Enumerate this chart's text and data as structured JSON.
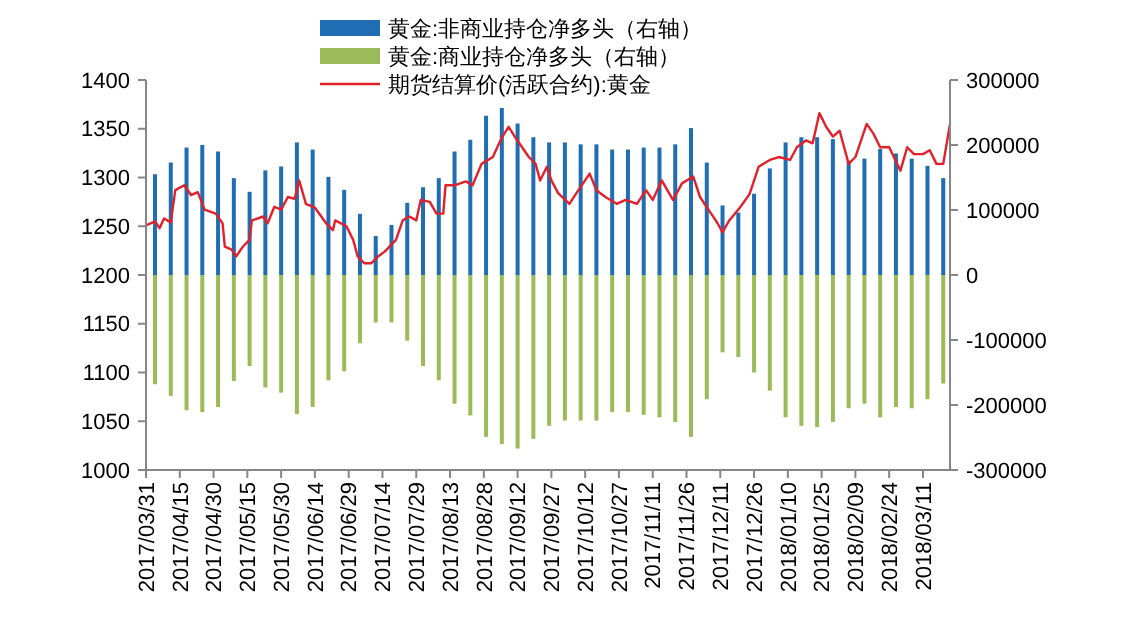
{
  "chart_data": {
    "type": "bar",
    "legend": "top",
    "grid": false,
    "xlim": [
      "2017-03-31",
      "2018-03-23"
    ],
    "xticks": [
      {
        "value": "2017-03-31",
        "label": "2017/03/31"
      },
      {
        "value": "2017-04-15",
        "label": "2017/04/15"
      },
      {
        "value": "2017-04-30",
        "label": "2017/04/30"
      },
      {
        "value": "2017-05-15",
        "label": "2017/05/15"
      },
      {
        "value": "2017-05-30",
        "label": "2017/05/30"
      },
      {
        "value": "2017-06-14",
        "label": "2017/06/14"
      },
      {
        "value": "2017-06-29",
        "label": "2017/06/29"
      },
      {
        "value": "2017-07-14",
        "label": "2017/07/14"
      },
      {
        "value": "2017-07-29",
        "label": "2017/07/29"
      },
      {
        "value": "2017-08-13",
        "label": "2017/08/13"
      },
      {
        "value": "2017-08-28",
        "label": "2017/08/28"
      },
      {
        "value": "2017-09-12",
        "label": "2017/09/12"
      },
      {
        "value": "2017-09-27",
        "label": "2017/09/27"
      },
      {
        "value": "2017-10-12",
        "label": "2017/10/12"
      },
      {
        "value": "2017-10-27",
        "label": "2017/10/27"
      },
      {
        "value": "2017-11-11",
        "label": "2017/11/11"
      },
      {
        "value": "2017-11-26",
        "label": "2017/11/26"
      },
      {
        "value": "2017-12-11",
        "label": "2017/12/11"
      },
      {
        "value": "2017-12-26",
        "label": "2017/12/26"
      },
      {
        "value": "2018-01-10",
        "label": "2018/01/10"
      },
      {
        "value": "2018-01-25",
        "label": "2018/01/25"
      },
      {
        "value": "2018-02-09",
        "label": "2018/02/09"
      },
      {
        "value": "2018-02-24",
        "label": "2018/02/24"
      },
      {
        "value": "2018-03-11",
        "label": "2018/03/11"
      }
    ],
    "ylim": [
      1000,
      1400
    ],
    "yticks": [
      1000,
      1050,
      1100,
      1150,
      1200,
      1250,
      1300,
      1350,
      1400
    ],
    "y2lim": [
      -300000,
      300000
    ],
    "y2ticks": [
      -300000,
      -200000,
      -100000,
      0,
      100000,
      200000,
      300000
    ],
    "x": [
      "2017-04-04",
      "2017-04-11",
      "2017-04-18",
      "2017-04-25",
      "2017-05-02",
      "2017-05-09",
      "2017-05-16",
      "2017-05-23",
      "2017-05-30",
      "2017-06-06",
      "2017-06-13",
      "2017-06-20",
      "2017-06-27",
      "2017-07-04",
      "2017-07-11",
      "2017-07-18",
      "2017-07-25",
      "2017-08-01",
      "2017-08-08",
      "2017-08-15",
      "2017-08-22",
      "2017-08-29",
      "2017-09-05",
      "2017-09-12",
      "2017-09-19",
      "2017-09-26",
      "2017-10-03",
      "2017-10-10",
      "2017-10-17",
      "2017-10-24",
      "2017-10-31",
      "2017-11-07",
      "2017-11-14",
      "2017-11-21",
      "2017-11-28",
      "2017-12-05",
      "2017-12-12",
      "2017-12-19",
      "2017-12-26",
      "2018-01-02",
      "2018-01-09",
      "2018-01-16",
      "2018-01-23",
      "2018-01-30",
      "2018-02-06",
      "2018-02-13",
      "2018-02-20",
      "2018-02-27",
      "2018-03-06",
      "2018-03-13",
      "2018-03-20"
    ],
    "series": [
      {
        "name": "黄金:非商业持仓净多头（右轴）",
        "axis": "y2",
        "color": "#1f6db3",
        "values": [
          155000,
          173000,
          196000,
          200000,
          190000,
          149000,
          128000,
          161000,
          167000,
          204000,
          193000,
          151000,
          131000,
          94000,
          60000,
          77000,
          111000,
          135000,
          149000,
          190000,
          208000,
          245000,
          257000,
          233000,
          212000,
          204000,
          204000,
          201000,
          201000,
          193000,
          193000,
          196000,
          196000,
          201000,
          226000,
          173000,
          107000,
          96000,
          125000,
          164000,
          204000,
          212000,
          212000,
          209000,
          176000,
          179000,
          194000,
          187000,
          179000,
          168000,
          149000
        ]
      },
      {
        "name": "黄金:商业持仓净多头（右轴）",
        "axis": "y2",
        "color": "#9bbb59",
        "values": [
          -168000,
          -186000,
          -208000,
          -211000,
          -203000,
          -163000,
          -140000,
          -173000,
          -181000,
          -214000,
          -203000,
          -162000,
          -148000,
          -105000,
          -73000,
          -73000,
          -101000,
          -140000,
          -162000,
          -198000,
          -216000,
          -249000,
          -260000,
          -267000,
          -252000,
          -232000,
          -224000,
          -224000,
          -224000,
          -211000,
          -211000,
          -215000,
          -219000,
          -226000,
          -249000,
          -191000,
          -119000,
          -126000,
          -150000,
          -178000,
          -219000,
          -232000,
          -234000,
          -226000,
          -205000,
          -198000,
          -219000,
          -203000,
          -205000,
          -191000,
          -167000
        ]
      },
      {
        "name": "期货结算价(活跃合约):黄金",
        "type": "line",
        "color": "#e3202a",
        "x": [
          "2017-03-31",
          "2017-04-04",
          "2017-04-06",
          "2017-04-08",
          "2017-04-11",
          "2017-04-13",
          "2017-04-17",
          "2017-04-20",
          "2017-04-23",
          "2017-04-26",
          "2017-05-01",
          "2017-05-04",
          "2017-05-05",
          "2017-05-08",
          "2017-05-10",
          "2017-05-13",
          "2017-05-16",
          "2017-05-17",
          "2017-05-22",
          "2017-05-24",
          "2017-05-27",
          "2017-05-30",
          "2017-06-02",
          "2017-06-05",
          "2017-06-07",
          "2017-06-10",
          "2017-06-14",
          "2017-06-19",
          "2017-06-22",
          "2017-06-23",
          "2017-06-28",
          "2017-07-01",
          "2017-07-03",
          "2017-07-06",
          "2017-07-09",
          "2017-07-12",
          "2017-07-15",
          "2017-07-20",
          "2017-07-23",
          "2017-07-26",
          "2017-07-29",
          "2017-07-31",
          "2017-08-04",
          "2017-08-07",
          "2017-08-10",
          "2017-08-11",
          "2017-08-15",
          "2017-08-20",
          "2017-08-23",
          "2017-08-27",
          "2017-09-01",
          "2017-09-05",
          "2017-09-08",
          "2017-09-11",
          "2017-09-14",
          "2017-09-17",
          "2017-09-20",
          "2017-09-22",
          "2017-09-25",
          "2017-09-27",
          "2017-09-30",
          "2017-10-05",
          "2017-10-09",
          "2017-10-14",
          "2017-10-17",
          "2017-10-21",
          "2017-10-26",
          "2017-10-30",
          "2017-11-04",
          "2017-11-08",
          "2017-11-11",
          "2017-11-15",
          "2017-11-20",
          "2017-11-24",
          "2017-11-29",
          "2017-12-02",
          "2017-12-06",
          "2017-12-09",
          "2017-12-12",
          "2017-12-15",
          "2017-12-20",
          "2017-12-24",
          "2017-12-28",
          "2018-01-02",
          "2018-01-06",
          "2018-01-11",
          "2018-01-14",
          "2018-01-18",
          "2018-01-21",
          "2018-01-24",
          "2018-01-27",
          "2018-01-30",
          "2018-02-02",
          "2018-02-06",
          "2018-02-09",
          "2018-02-14",
          "2018-02-17",
          "2018-02-20",
          "2018-02-24",
          "2018-03-01",
          "2018-03-04",
          "2018-03-07",
          "2018-03-11",
          "2018-03-14",
          "2018-03-17",
          "2018-03-20",
          "2018-03-23"
        ],
        "values": [
          1251,
          1255,
          1248,
          1258,
          1254,
          1287,
          1292,
          1282,
          1285,
          1267,
          1263,
          1253,
          1229,
          1226,
          1219,
          1229,
          1236,
          1256,
          1260,
          1253,
          1270,
          1267,
          1280,
          1278,
          1297,
          1273,
          1269,
          1253,
          1246,
          1256,
          1250,
          1236,
          1219,
          1212,
          1212,
          1219,
          1224,
          1236,
          1256,
          1260,
          1256,
          1277,
          1275,
          1263,
          1263,
          1292,
          1292,
          1296,
          1292,
          1314,
          1321,
          1341,
          1352,
          1341,
          1331,
          1321,
          1314,
          1297,
          1311,
          1297,
          1284,
          1273,
          1287,
          1304,
          1287,
          1280,
          1273,
          1277,
          1273,
          1287,
          1277,
          1297,
          1277,
          1294,
          1301,
          1280,
          1266,
          1256,
          1244,
          1256,
          1270,
          1283,
          1311,
          1318,
          1321,
          1318,
          1331,
          1338,
          1335,
          1366,
          1352,
          1342,
          1348,
          1314,
          1321,
          1355,
          1345,
          1331,
          1331,
          1307,
          1331,
          1324,
          1324,
          1328,
          1314,
          1314,
          1355
        ]
      }
    ]
  }
}
